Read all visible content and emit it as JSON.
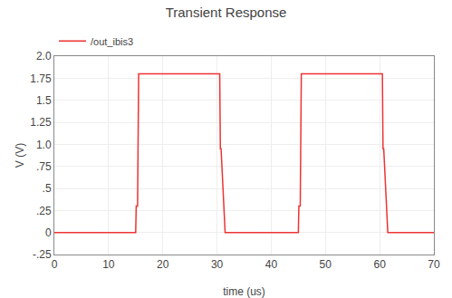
{
  "chart_data": {
    "type": "line",
    "title": "Transient Response",
    "xlabel": "time (us)",
    "ylabel": "V (V)",
    "x": [
      0.0,
      15.0,
      15.1,
      15.35,
      15.55,
      16.5,
      30.5,
      30.62,
      30.75,
      31.5,
      45.0,
      45.1,
      45.35,
      45.55,
      46.5,
      60.5,
      60.62,
      60.75,
      61.5,
      70.0
    ],
    "series": [
      {
        "name": "/out_ibis3",
        "color": "#ee3333",
        "values": [
          0.0,
          0.0,
          0.3,
          0.3,
          1.8,
          1.8,
          1.8,
          0.95,
          0.95,
          0.0,
          0.0,
          0.3,
          0.3,
          1.8,
          1.8,
          1.8,
          0.95,
          0.95,
          0.0,
          0.0
        ]
      }
    ],
    "xlim": [
      0,
      70
    ],
    "xticks": [
      0,
      10,
      20,
      30,
      40,
      50,
      60,
      70
    ],
    "ylim": [
      -0.25,
      2.0
    ],
    "yticks": [
      {
        "value": -0.25,
        "label": "-.25"
      },
      0,
      {
        "value": 0.25,
        "label": ".25"
      },
      {
        "value": 0.5,
        "label": ".5"
      },
      {
        "value": 0.75,
        "label": ".75"
      },
      {
        "value": 1.0,
        "label": "1.0"
      },
      1.25,
      1.5,
      1.75,
      {
        "value": 2.0,
        "label": "2.0"
      }
    ],
    "grid": true,
    "legend": "upper left"
  }
}
